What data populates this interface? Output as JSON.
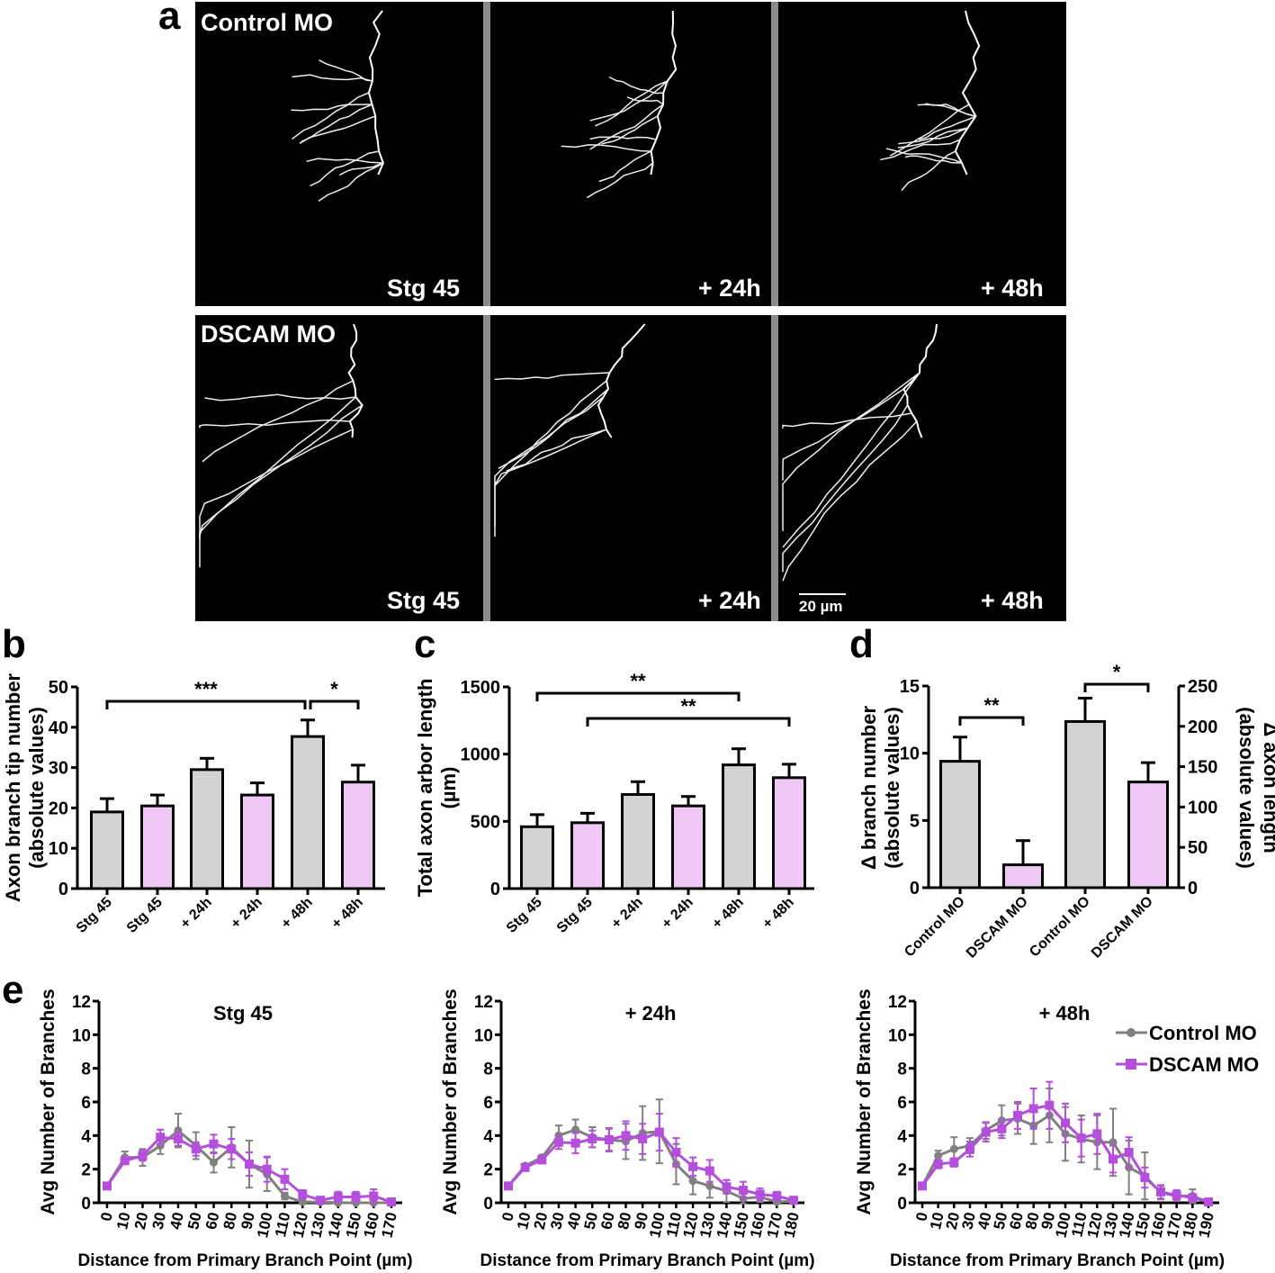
{
  "panel_labels": {
    "a": "a",
    "b": "b",
    "c": "c",
    "d": "d",
    "e": "e"
  },
  "micrographs": {
    "row_labels": [
      "Control MO",
      "DSCAM MO"
    ],
    "time_labels": [
      "Stg 45",
      "+ 24h",
      "+ 48h"
    ],
    "scale_bar": "20 µm",
    "colors": {
      "background": "#000000",
      "signal": "#ffffff",
      "separator": "#8a8a8a"
    }
  },
  "colors": {
    "control": "#d3d3d3",
    "dscam": "#f0c8f5",
    "control_line": "#808080",
    "dscam_line": "#b44fdc"
  },
  "chart_data": [
    {
      "id": "b",
      "type": "bar",
      "ylabel": [
        "Axon branch tip number",
        "(absolute values)"
      ],
      "ylim": [
        0,
        50
      ],
      "yticks": [
        0,
        10,
        20,
        30,
        40,
        50
      ],
      "categories": [
        "Stg 45",
        "Stg 45",
        "+ 24h",
        "+ 24h",
        "+ 48h",
        "+ 48h"
      ],
      "groups": [
        "control",
        "dscam",
        "control",
        "dscam",
        "control",
        "dscam"
      ],
      "values": [
        19,
        20.5,
        29.5,
        23.2,
        37.7,
        26.4
      ],
      "errors": [
        3.3,
        2.7,
        2.8,
        3.0,
        4.1,
        4.2
      ],
      "significance": [
        {
          "from": 0,
          "to": 4,
          "label": "***"
        },
        {
          "from": 4,
          "to": 5,
          "label": "*"
        }
      ]
    },
    {
      "id": "c",
      "type": "bar",
      "ylabel": [
        "Total axon arbor length",
        "(µm)"
      ],
      "ylim": [
        0,
        1500
      ],
      "yticks": [
        0,
        500,
        1000,
        1500
      ],
      "categories": [
        "Stg 45",
        "Stg 45",
        "+ 24h",
        "+ 24h",
        "+ 48h",
        "+ 48h"
      ],
      "groups": [
        "control",
        "dscam",
        "control",
        "dscam",
        "control",
        "dscam"
      ],
      "values": [
        460,
        490,
        700,
        615,
        920,
        825
      ],
      "errors": [
        90,
        70,
        95,
        70,
        120,
        100
      ],
      "significance": [
        {
          "from": 0,
          "to": 4,
          "label": "**"
        },
        {
          "from": 1,
          "to": 5,
          "label": "**"
        }
      ]
    },
    {
      "id": "d",
      "type": "bar",
      "ylabel": [
        "Δ branch number",
        "(absolute values)"
      ],
      "ylabel_right": [
        "Δ axon length",
        "(absolute values)"
      ],
      "ylim": [
        0,
        15
      ],
      "yticks": [
        0,
        5,
        10,
        15
      ],
      "ylim_right": [
        0,
        250
      ],
      "yticks_right": [
        0,
        50,
        100,
        150,
        200,
        250
      ],
      "categories": [
        "Control MO",
        "DSCAM MO",
        "Control MO",
        "DSCAM MO"
      ],
      "groups": [
        "control",
        "dscam",
        "control",
        "dscam"
      ],
      "axis": [
        "left",
        "left",
        "right",
        "right"
      ],
      "values": [
        9.4,
        1.7,
        206,
        131
      ],
      "errors": [
        1.8,
        1.8,
        29,
        24
      ],
      "significance": [
        {
          "from": 0,
          "to": 1,
          "label": "**"
        },
        {
          "from": 2,
          "to": 3,
          "label": "*"
        }
      ]
    },
    {
      "id": "e1",
      "type": "line",
      "title": "Stg 45",
      "ylabel": "Avg Number of Branches",
      "xlabel": "Distance from Primary Branch Point (µm)",
      "ylim": [
        0,
        12
      ],
      "yticks": [
        0,
        2,
        4,
        6,
        8,
        10,
        12
      ],
      "x": [
        "0",
        "10",
        "20",
        "30",
        "40",
        "50",
        "60",
        "80",
        "90",
        "100",
        "110",
        "120",
        "130",
        "140",
        "150",
        "160",
        "170"
      ],
      "series": [
        {
          "name": "Control MO",
          "key": "control",
          "values": [
            1,
            2.7,
            2.7,
            3.4,
            4.3,
            3.4,
            2.4,
            3.3,
            2.3,
            1.7,
            0.4,
            0.05,
            0.05,
            0,
            0,
            0,
            0
          ],
          "errors": [
            0,
            0.35,
            0.5,
            0.5,
            1.0,
            0.8,
            0.6,
            1.2,
            1.4,
            1.0,
            0.2,
            0.05,
            0.05,
            0,
            0,
            0,
            0
          ]
        },
        {
          "name": "DSCAM MO",
          "key": "dscam",
          "values": [
            1,
            2.5,
            2.8,
            3.9,
            3.8,
            3.2,
            3.5,
            3.2,
            2.3,
            2.0,
            1.4,
            0.5,
            0.15,
            0.35,
            0.35,
            0.4,
            0.05
          ],
          "errors": [
            0,
            0.15,
            0.3,
            0.45,
            0.4,
            0.4,
            0.55,
            0.6,
            0.7,
            0.75,
            0.6,
            0.25,
            0.1,
            0.3,
            0.3,
            0.4,
            0.05
          ]
        }
      ]
    },
    {
      "id": "e2",
      "type": "line",
      "title": "+ 24h",
      "ylabel": "Avg Number of Branches",
      "xlabel": "Distance from Primary Branch Point (µm)",
      "ylim": [
        0,
        12
      ],
      "yticks": [
        0,
        2,
        4,
        6,
        8,
        10,
        12
      ],
      "x": [
        "0",
        "10",
        "20",
        "30",
        "40",
        "50",
        "60",
        "80",
        "90",
        "100",
        "110",
        "120",
        "130",
        "140",
        "150",
        "160",
        "170",
        "180"
      ],
      "series": [
        {
          "name": "Control MO",
          "key": "control",
          "values": [
            1,
            2.2,
            2.7,
            4.0,
            4.35,
            3.9,
            3.75,
            3.65,
            4.15,
            4.25,
            2.3,
            1.3,
            1.0,
            0.7,
            0.25,
            0.35,
            0.05,
            0.1
          ],
          "errors": [
            0,
            0.1,
            0.15,
            0.6,
            0.6,
            0.6,
            0.7,
            1.05,
            1.6,
            1.9,
            1.2,
            0.8,
            0.7,
            0.65,
            0.3,
            0.3,
            0.05,
            0.1
          ]
        },
        {
          "name": "DSCAM MO",
          "key": "dscam",
          "values": [
            1,
            2.1,
            2.55,
            3.6,
            3.55,
            3.8,
            3.75,
            4.0,
            3.8,
            4.2,
            3.0,
            2.15,
            1.9,
            0.95,
            0.75,
            0.5,
            0.4,
            0.15
          ],
          "errors": [
            0,
            0.1,
            0.15,
            0.4,
            0.6,
            0.5,
            0.65,
            0.85,
            0.9,
            1.1,
            0.85,
            0.55,
            0.65,
            0.4,
            0.5,
            0.35,
            0.25,
            0.1
          ]
        }
      ]
    },
    {
      "id": "e3",
      "type": "line",
      "title": "+ 48h",
      "ylabel": "Avg Number of Branches",
      "xlabel": "Distance from Primary Branch Point (µm)",
      "ylim": [
        0,
        12
      ],
      "yticks": [
        0,
        2,
        4,
        6,
        8,
        10,
        12
      ],
      "x": [
        "0",
        "10",
        "20",
        "30",
        "40",
        "50",
        "60",
        "80",
        "90",
        "100",
        "110",
        "120",
        "130",
        "140",
        "150",
        "160",
        "170",
        "180",
        "190"
      ],
      "legend": {
        "placement": "top-right",
        "entries": [
          "Control MO",
          "DSCAM MO"
        ]
      },
      "series": [
        {
          "name": "Control MO",
          "key": "control",
          "values": [
            1,
            2.8,
            3.2,
            3.4,
            4.3,
            4.9,
            5.0,
            4.6,
            5.2,
            4.1,
            3.8,
            3.6,
            3.6,
            2.1,
            1.6,
            0.6,
            0.4,
            0.4,
            0.05
          ],
          "errors": [
            0,
            0.3,
            0.7,
            0.45,
            0.5,
            0.9,
            0.9,
            1.1,
            1.6,
            1.6,
            1.4,
            1.6,
            2.0,
            1.6,
            1.4,
            0.4,
            0.3,
            0.4,
            0.05
          ]
        },
        {
          "name": "DSCAM MO",
          "key": "dscam",
          "values": [
            1,
            2.3,
            2.4,
            3.2,
            4.2,
            4.4,
            5.2,
            5.6,
            5.8,
            4.75,
            3.85,
            4.1,
            2.6,
            3.0,
            1.5,
            0.65,
            0.45,
            0.3,
            0.05
          ],
          "errors": [
            0,
            0.25,
            0.25,
            0.45,
            0.55,
            0.55,
            0.8,
            1.2,
            1.4,
            1.15,
            1.1,
            1.2,
            0.8,
            0.9,
            0.6,
            0.4,
            0.3,
            0.2,
            0.05
          ]
        }
      ]
    }
  ]
}
